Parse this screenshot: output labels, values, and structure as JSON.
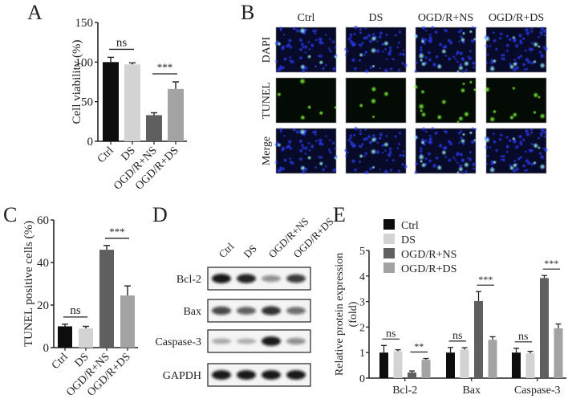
{
  "panels": {
    "A": {
      "letter": "A"
    },
    "B": {
      "letter": "B",
      "columns": [
        "Ctrl",
        "DS",
        "OGD/R+NS",
        "OGD/R+DS"
      ],
      "rows": [
        "DAPI",
        "TUNEL",
        "Merge"
      ]
    },
    "C": {
      "letter": "C"
    },
    "D": {
      "letter": "D",
      "lanes": [
        "Ctrl",
        "DS",
        "OGD/R+NS",
        "OGD/R+DS"
      ],
      "proteins": [
        "Bcl-2",
        "Bax",
        "Caspase-3",
        "GAPDH"
      ],
      "band_intensity": [
        [
          0.95,
          0.9,
          0.45,
          0.8
        ],
        [
          0.75,
          0.65,
          0.85,
          0.6
        ],
        [
          0.3,
          0.28,
          0.95,
          0.45
        ],
        [
          0.95,
          0.95,
          0.95,
          0.95
        ]
      ]
    },
    "E": {
      "letter": "E"
    }
  },
  "colors": {
    "Ctrl": "#0d0d0d",
    "DS": "#d3d3d3",
    "OGD/R+NS": "#5f5f5f",
    "OGD/R+DS": "#a3a3a3"
  },
  "chart_data": [
    {
      "panel": "A",
      "type": "bar",
      "title": "",
      "xlabel": "",
      "ylabel": "Cell viability (%)",
      "categories": [
        "Ctrl",
        "DS",
        "OGD/R+NS",
        "OGD/R+DS"
      ],
      "values": [
        100,
        97,
        33,
        66
      ],
      "errors": [
        6,
        2,
        3,
        9
      ],
      "ylim": [
        0,
        150
      ],
      "yticks": [
        0,
        50,
        100,
        150
      ],
      "annotations": [
        {
          "between": [
            "Ctrl",
            "DS"
          ],
          "label": "ns"
        },
        {
          "between": [
            "OGD/R+NS",
            "OGD/R+DS"
          ],
          "label": "***"
        }
      ],
      "grid": false
    },
    {
      "panel": "C",
      "type": "bar",
      "title": "",
      "xlabel": "",
      "ylabel": "TUNEL positive cells (%)",
      "categories": [
        "Ctrl",
        "DS",
        "OGD/R+NS",
        "OGD/R+DS"
      ],
      "values": [
        10,
        9,
        46,
        24.5
      ],
      "errors": [
        1,
        1,
        2,
        4.5
      ],
      "ylim": [
        0,
        60
      ],
      "yticks": [
        0,
        20,
        40,
        60
      ],
      "annotations": [
        {
          "between": [
            "Ctrl",
            "DS"
          ],
          "label": "ns"
        },
        {
          "between": [
            "OGD/R+NS",
            "OGD/R+DS"
          ],
          "label": "***"
        }
      ],
      "grid": false
    },
    {
      "panel": "E",
      "type": "bar",
      "title": "",
      "xlabel": "",
      "ylabel": "Relative protein expression (fold)",
      "ylabel_lines": [
        "Relative protein expression",
        "(fold)"
      ],
      "categories": [
        "Bcl-2",
        "Bax",
        "Caspase-3"
      ],
      "series": [
        {
          "name": "Ctrl",
          "values": [
            1.0,
            1.0,
            1.0
          ],
          "errors": [
            0.28,
            0.2,
            0.17
          ]
        },
        {
          "name": "DS",
          "values": [
            1.05,
            1.12,
            0.97
          ],
          "errors": [
            0.06,
            0.07,
            0.08
          ]
        },
        {
          "name": "OGD/R+NS",
          "values": [
            0.22,
            3.02,
            3.92
          ],
          "errors": [
            0.06,
            0.37,
            0.1
          ]
        },
        {
          "name": "OGD/R+DS",
          "values": [
            0.72,
            1.5,
            1.95
          ],
          "errors": [
            0.05,
            0.12,
            0.17
          ]
        }
      ],
      "ylim": [
        0,
        5
      ],
      "yticks": [
        0,
        1,
        2,
        3,
        4,
        5
      ],
      "legend": {
        "position": "top-left",
        "entries": [
          "Ctrl",
          "DS",
          "OGD/R+NS",
          "OGD/R+DS"
        ]
      },
      "annotations": [
        {
          "category": "Bcl-2",
          "between": [
            "Ctrl",
            "DS"
          ],
          "label": "ns"
        },
        {
          "category": "Bcl-2",
          "between": [
            "OGD/R+NS",
            "OGD/R+DS"
          ],
          "label": "**"
        },
        {
          "category": "Bax",
          "between": [
            "Ctrl",
            "DS"
          ],
          "label": "ns"
        },
        {
          "category": "Bax",
          "between": [
            "OGD/R+NS",
            "OGD/R+DS"
          ],
          "label": "***"
        },
        {
          "category": "Caspase-3",
          "between": [
            "Ctrl",
            "DS"
          ],
          "label": "ns"
        },
        {
          "category": "Caspase-3",
          "between": [
            "OGD/R+NS",
            "OGD/R+DS"
          ],
          "label": "***"
        }
      ],
      "grid": false
    }
  ]
}
